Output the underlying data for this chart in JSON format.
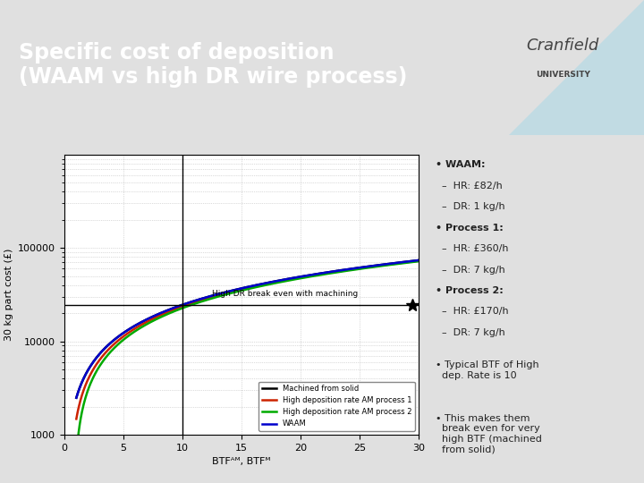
{
  "title": "Specific cost of deposition\n(WAAM vs high DR wire process)",
  "title_bg_color": "#00AEEF",
  "title_text_color": "#FFFFFF",
  "plot_bg_color": "#FFFFFF",
  "slide_bg_color": "#E0E0E0",
  "xlabel": "BTFᴬᴹ, BTFᴹ",
  "ylabel": "30 kg part cost (£)",
  "xlim": [
    0,
    30
  ],
  "ylim_log": [
    1000,
    1000000
  ],
  "btf_min": 1.01,
  "btf_max": 30,
  "part_weight": 30,
  "HR_machine": 82,
  "DR_machine": 1,
  "BTF_AM": 1.1,
  "processes": [
    {
      "label": "Machined from solid",
      "color": "#000000",
      "HR": 82,
      "DR": 1,
      "type": "machined"
    },
    {
      "label": "High deposition rate AM process 1",
      "color": "#CC2200",
      "HR": 360,
      "DR": 7,
      "type": "am"
    },
    {
      "label": "High deposition rate AM process 2",
      "color": "#00AA00",
      "HR": 170,
      "DR": 7,
      "type": "am"
    },
    {
      "label": "WAAM",
      "color": "#0000CC",
      "HR": 82,
      "DR": 1,
      "type": "waam"
    }
  ],
  "breakeven_btf": 10,
  "annotation": "High DR break even with machining",
  "xticks": [
    0,
    5,
    10,
    15,
    20,
    25,
    30
  ],
  "ytick_labels": [
    "1000",
    "10000",
    "100000"
  ],
  "ytick_vals": [
    1000,
    10000,
    100000
  ],
  "bullet_lines": [
    {
      "text": "• WAAM:",
      "bold": true,
      "multiline": false
    },
    {
      "text": "  –  HR: £82/h",
      "bold": false,
      "multiline": false
    },
    {
      "text": "  –  DR: 1 kg/h",
      "bold": false,
      "multiline": false
    },
    {
      "text": "• Process 1:",
      "bold": true,
      "multiline": false
    },
    {
      "text": "  –  HR: £360/h",
      "bold": false,
      "multiline": false
    },
    {
      "text": "  –  DR: 7 kg/h",
      "bold": false,
      "multiline": false
    },
    {
      "text": "• Process 2:",
      "bold": true,
      "multiline": false
    },
    {
      "text": "  –  HR: £170/h",
      "bold": false,
      "multiline": false
    },
    {
      "text": "  –  DR: 7 kg/h",
      "bold": false,
      "multiline": false
    },
    {
      "text": "",
      "bold": false,
      "multiline": false
    },
    {
      "text": "• Typical BTF of High\n  dep. Rate is 10",
      "bold": false,
      "multiline": true
    },
    {
      "text": "",
      "bold": false,
      "multiline": false
    },
    {
      "text": "• This makes them\n  break even for very\n  high BTF (machined\n  from solid)",
      "bold": false,
      "multiline": true
    }
  ]
}
